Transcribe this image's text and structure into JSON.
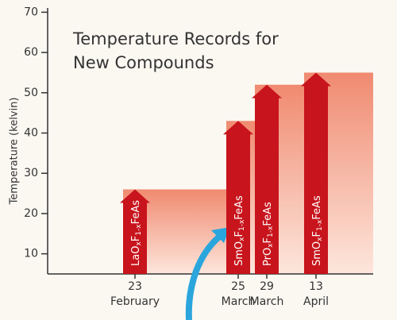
{
  "chart_data": {
    "type": "bar",
    "title": [
      "Temperature Records for",
      "New Compounds"
    ],
    "y_label": "Temperature (kelvin)",
    "categories": [
      [
        "23",
        "February"
      ],
      [
        "25",
        "March"
      ],
      [
        "29",
        "March"
      ],
      [
        "13",
        "April"
      ]
    ],
    "bar_labels": [
      [
        "LaO",
        "x",
        "F",
        "1-x",
        "FeAs"
      ],
      [
        "SmO",
        "x",
        "F",
        "1-x",
        "FeAs"
      ],
      [
        "PrO",
        "x",
        "F",
        "1-x",
        "FeAs"
      ],
      [
        "SmO",
        "x",
        "F",
        "1-x",
        "FeAs"
      ]
    ],
    "values": [
      26,
      43,
      52,
      55
    ],
    "color": "#c8141c",
    "ylim": [
      5,
      70
    ],
    "yticks": [
      10,
      20,
      30,
      40,
      50,
      60,
      70
    ]
  }
}
